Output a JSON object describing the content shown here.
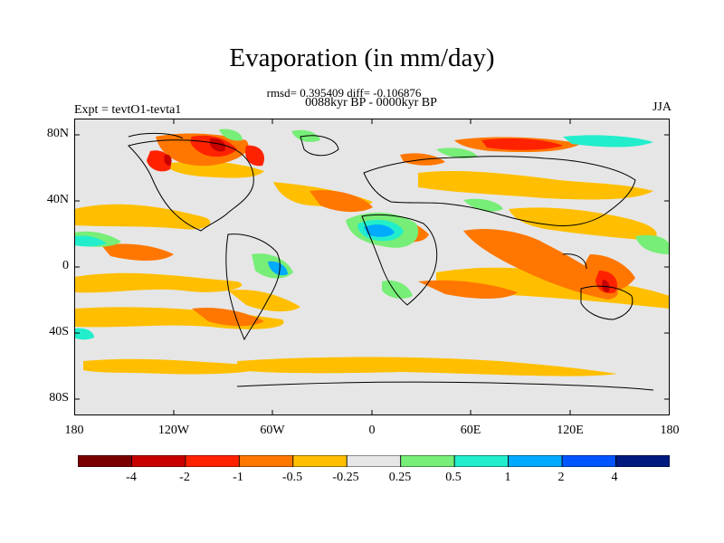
{
  "title": "Evaporation (in mm/day)",
  "stats_line": "rmsd= 0.395409 diff= -0.106876",
  "period_line": "0088kyr BP - 0000kyr BP",
  "expt_label": "Expt = tevtO1-tevta1",
  "season_label": "JJA",
  "lat_ticks": [
    "80N",
    "40N",
    "0",
    "40S",
    "80S"
  ],
  "lon_ticks": [
    "180",
    "120W",
    "60W",
    "0",
    "60E",
    "120E",
    "180"
  ],
  "colorbar": {
    "labels": [
      "-4",
      "-2",
      "-1",
      "-0.5",
      "-0.25",
      "0.25",
      "0.5",
      "1",
      "2",
      "4"
    ],
    "colors": [
      "#7a0000",
      "#c80000",
      "#ff2200",
      "#ff7700",
      "#ffbf00",
      "#e6e6e6",
      "#77ee77",
      "#22eecc",
      "#00aaff",
      "#0055ff",
      "#001a80"
    ]
  }
}
